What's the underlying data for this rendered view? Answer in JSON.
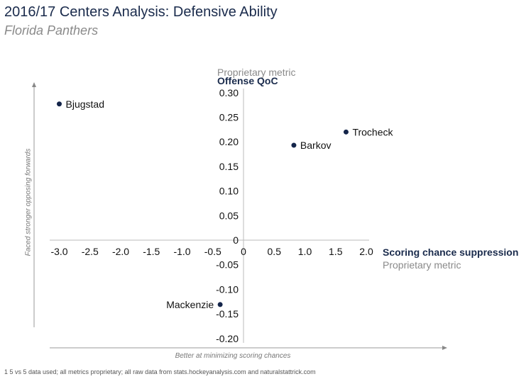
{
  "chart_data": {
    "type": "scatter",
    "title": "2016/17 Centers Analysis: Defensive Ability",
    "subtitle": "Florida Panthers",
    "xlabel": "Scoring chance suppression",
    "xlabel_sub": "Proprietary metric",
    "ylabel": "Offense QoC",
    "ylabel_sub": "Proprietary metric",
    "x_annotation": "Better at minimizing scoring chances",
    "y_annotation": "Faced stronger opposing forwards",
    "xlim": [
      -3.0,
      2.0
    ],
    "ylim": [
      -0.2,
      0.3
    ],
    "xticks": [
      "-3.0",
      "-2.5",
      "-2.0",
      "-1.5",
      "-1.0",
      "-0.5",
      "0",
      "0.5",
      "1.0",
      "1.5",
      "2.0"
    ],
    "yticks": [
      "0.30",
      "0.25",
      "0.20",
      "0.15",
      "0.10",
      "0.05",
      "0",
      "-0.05",
      "-0.10",
      "-0.15",
      "-0.20"
    ],
    "grid": false,
    "point_color": "#14254a",
    "points": [
      {
        "label": "Bjugstad",
        "x": -3.0,
        "y": 0.277
      },
      {
        "label": "Trocheck",
        "x": 1.67,
        "y": 0.22
      },
      {
        "label": "Barkov",
        "x": 0.82,
        "y": 0.193
      },
      {
        "label": "Mackenzie",
        "x": -0.38,
        "y": -0.131
      }
    ]
  },
  "footnote": "1 5 vs 5 data used; all metrics proprietary; all raw data from stats.hockeyanalysis.com and naturalstattrick.com"
}
